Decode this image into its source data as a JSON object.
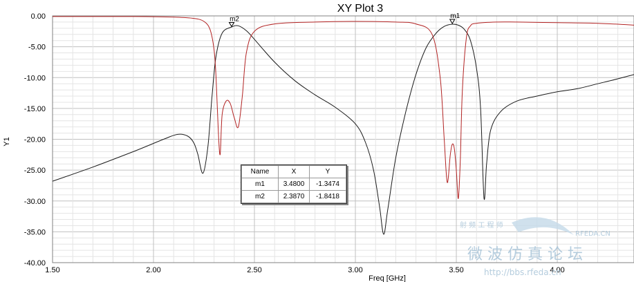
{
  "chart_data": {
    "type": "line",
    "title": "XY Plot 3",
    "xlabel": "Freq [GHz]",
    "ylabel": "Y1",
    "xlim": [
      1.5,
      4.38
    ],
    "ylim": [
      -40,
      0
    ],
    "x_ticks": [
      "1.50",
      "2.00",
      "2.50",
      "3.00",
      "3.50",
      "4.00"
    ],
    "x_tick_values": [
      1.5,
      2.0,
      2.5,
      3.0,
      3.5,
      4.0
    ],
    "y_ticks": [
      "0.00",
      "-5.00",
      "-10.00",
      "-15.00",
      "-20.00",
      "-25.00",
      "-30.00",
      "-35.00",
      "-40.00"
    ],
    "y_tick_values": [
      0,
      -5,
      -10,
      -15,
      -20,
      -25,
      -30,
      -35,
      -40
    ],
    "grid": true,
    "series": [
      {
        "color": "#1a1a1a",
        "x": [
          1.5,
          1.7,
          1.9,
          2.05,
          2.12,
          2.17,
          2.2,
          2.22,
          2.245,
          2.27,
          2.29,
          2.31,
          2.34,
          2.387,
          2.42,
          2.46,
          2.5,
          2.6,
          2.7,
          2.8,
          2.9,
          3.0,
          3.05,
          3.09,
          3.12,
          3.14,
          3.16,
          3.2,
          3.25,
          3.3,
          3.35,
          3.4,
          3.44,
          3.48,
          3.51,
          3.54,
          3.57,
          3.6,
          3.62,
          3.637,
          3.65,
          3.67,
          3.72,
          3.8,
          3.9,
          4.0,
          4.1,
          4.2,
          4.3,
          4.38
        ],
        "y": [
          -26.8,
          -24.5,
          -22.0,
          -20.0,
          -19.2,
          -19.5,
          -20.6,
          -22.5,
          -25.5,
          -21.0,
          -13.0,
          -6.5,
          -2.8,
          -1.8,
          -1.6,
          -2.4,
          -3.8,
          -7.5,
          -10.5,
          -12.8,
          -14.8,
          -17.5,
          -20.5,
          -25.0,
          -31.0,
          -35.4,
          -31.5,
          -23.0,
          -15.5,
          -9.5,
          -5.2,
          -2.8,
          -1.7,
          -1.35,
          -1.5,
          -2.2,
          -4.0,
          -8.5,
          -15.0,
          -29.5,
          -24.0,
          -18.5,
          -15.5,
          -13.8,
          -13.0,
          -12.3,
          -11.8,
          -11.0,
          -10.2,
          -9.5
        ]
      },
      {
        "color": "#b22222",
        "x": [
          1.5,
          1.7,
          1.9,
          2.1,
          2.2,
          2.25,
          2.28,
          2.3,
          2.31,
          2.32,
          2.33,
          2.34,
          2.36,
          2.38,
          2.4,
          2.42,
          2.44,
          2.46,
          2.5,
          2.6,
          2.8,
          3.0,
          3.2,
          3.3,
          3.38,
          3.42,
          3.44,
          3.455,
          3.47,
          3.48,
          3.49,
          3.5,
          3.51,
          3.52,
          3.53,
          3.55,
          3.57,
          3.6,
          3.7,
          3.8,
          4.0,
          4.2,
          4.38
        ],
        "y": [
          -0.1,
          -0.1,
          -0.1,
          -0.2,
          -0.4,
          -0.9,
          -2.2,
          -5.5,
          -10.0,
          -18.0,
          -22.5,
          -16.0,
          -13.8,
          -14.2,
          -16.5,
          -18.0,
          -13.0,
          -6.0,
          -2.5,
          -1.3,
          -1.0,
          -0.9,
          -1.0,
          -1.3,
          -3.0,
          -10.0,
          -20.0,
          -27.0,
          -22.5,
          -20.8,
          -21.5,
          -25.0,
          -29.6,
          -23.0,
          -12.0,
          -3.5,
          -1.6,
          -1.2,
          -1.0,
          -1.0,
          -1.1,
          -1.2,
          -1.5
        ]
      }
    ],
    "markers": [
      {
        "name": "m1",
        "x": 3.48,
        "y": -1.3474
      },
      {
        "name": "m2",
        "x": 2.387,
        "y": -1.8418
      }
    ]
  },
  "marker_table": {
    "headers": [
      "Name",
      "X",
      "Y"
    ],
    "rows": [
      {
        "name": "m1",
        "x": "3.4800",
        "y": "-1.3474"
      },
      {
        "name": "m2",
        "x": "2.3870",
        "y": "-1.8418"
      }
    ]
  },
  "watermark": {
    "line1": "微 波 仿 真 论 坛",
    "line2": "http://bbs.rfeda.cn",
    "logo": "RFEDA.CN",
    "small": "射 频 工 程 师"
  }
}
